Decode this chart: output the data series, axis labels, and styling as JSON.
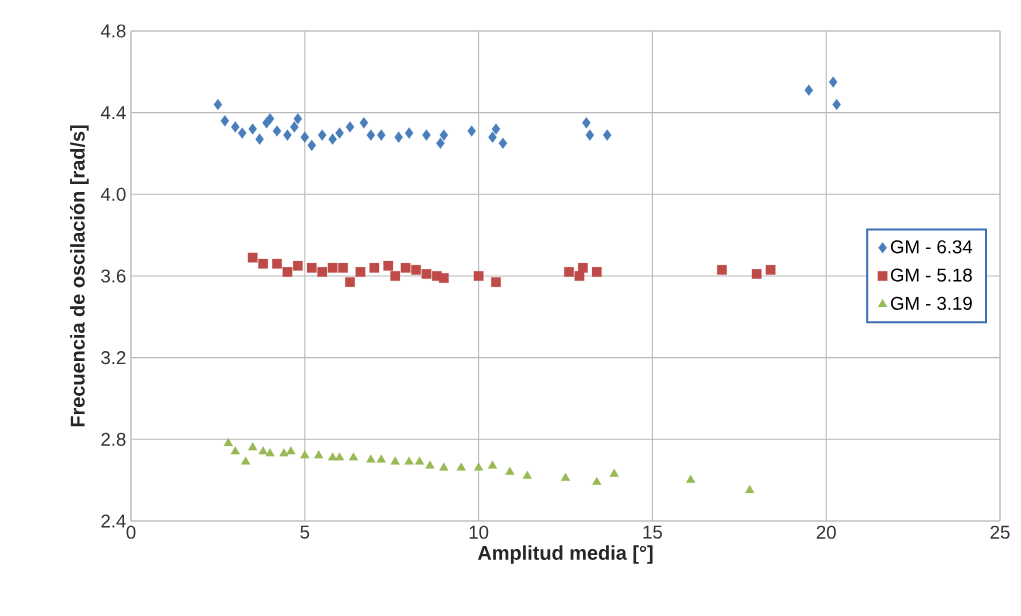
{
  "chart_data": {
    "type": "scatter",
    "xlabel": "Amplitud media  [°]",
    "ylabel": "Frecuencia de oscilación  [rad/s]",
    "xlim": [
      0,
      25
    ],
    "xticks": [
      0,
      5,
      10,
      15,
      20,
      25
    ],
    "ylim": [
      2.4,
      4.8
    ],
    "yticks": [
      2.4,
      2.8,
      3.2,
      3.6,
      {
        "value": 4.0,
        "label": "4.0"
      },
      4.4,
      4.8
    ],
    "grid": true,
    "legend": "right",
    "series": [
      {
        "name": "GM - 6.34",
        "color": "#4a7ebb",
        "marker": "diamond",
        "x": [
          2.5,
          2.7,
          3.0,
          3.2,
          3.5,
          3.7,
          3.9,
          4.0,
          4.2,
          4.5,
          4.7,
          4.8,
          5.0,
          5.2,
          5.5,
          5.8,
          6.0,
          6.3,
          6.7,
          6.9,
          7.2,
          7.7,
          8.0,
          8.5,
          8.9,
          9.0,
          9.8,
          10.4,
          10.5,
          10.7,
          13.1,
          13.2,
          13.7,
          19.5,
          20.2,
          20.3
        ],
        "values": [
          4.44,
          4.36,
          4.33,
          4.3,
          4.32,
          4.27,
          4.35,
          4.37,
          4.31,
          4.29,
          4.33,
          4.37,
          4.28,
          4.24,
          4.29,
          4.27,
          4.3,
          4.33,
          4.35,
          4.29,
          4.29,
          4.28,
          4.3,
          4.29,
          4.25,
          4.29,
          4.31,
          4.28,
          4.32,
          4.25,
          4.35,
          4.29,
          4.29,
          4.51,
          4.55,
          4.44
        ]
      },
      {
        "name": "GM - 5.18",
        "color": "#be4b48",
        "marker": "square",
        "x": [
          3.5,
          3.8,
          4.2,
          4.5,
          4.8,
          5.2,
          5.5,
          5.8,
          6.1,
          6.3,
          6.6,
          7.0,
          7.4,
          7.6,
          7.9,
          8.2,
          8.5,
          8.8,
          9.0,
          10.0,
          10.5,
          12.6,
          12.9,
          13.0,
          13.4,
          17.0,
          18.0,
          18.4
        ],
        "values": [
          3.69,
          3.66,
          3.66,
          3.62,
          3.65,
          3.64,
          3.62,
          3.64,
          3.64,
          3.57,
          3.62,
          3.64,
          3.65,
          3.6,
          3.64,
          3.63,
          3.61,
          3.6,
          3.59,
          3.6,
          3.57,
          3.62,
          3.6,
          3.64,
          3.62,
          3.63,
          3.61,
          3.63
        ]
      },
      {
        "name": "GM - 3.19",
        "color": "#98b954",
        "marker": "triangle",
        "x": [
          2.8,
          3.0,
          3.3,
          3.5,
          3.8,
          4.0,
          4.4,
          4.6,
          5.0,
          5.4,
          5.8,
          6.0,
          6.4,
          6.9,
          7.2,
          7.6,
          8.0,
          8.3,
          8.6,
          9.0,
          9.5,
          10.0,
          10.4,
          10.9,
          11.4,
          12.5,
          13.4,
          13.9,
          16.1,
          17.8
        ],
        "values": [
          2.78,
          2.74,
          2.69,
          2.76,
          2.74,
          2.73,
          2.73,
          2.74,
          2.72,
          2.72,
          2.71,
          2.71,
          2.71,
          2.7,
          2.7,
          2.69,
          2.69,
          2.69,
          2.67,
          2.66,
          2.66,
          2.66,
          2.67,
          2.64,
          2.62,
          2.61,
          2.59,
          2.63,
          2.6,
          2.55
        ]
      }
    ]
  }
}
